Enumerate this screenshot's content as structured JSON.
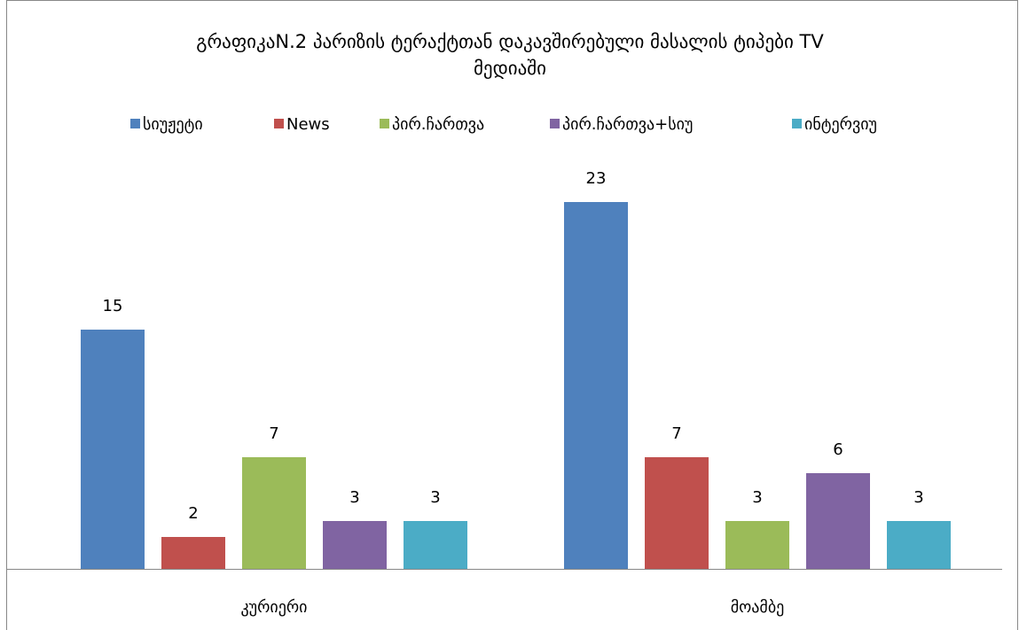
{
  "chart_data": {
    "type": "bar",
    "title": "გრაფიკაN.2 პარიზის ტერაქტთან დაკავშირებული მასალის ტიპები TV მედიაში",
    "categories": [
      "კურიერი",
      "მოამბე"
    ],
    "series": [
      {
        "name": "სიუჟეტი",
        "color": "#4f81bd",
        "values": [
          15,
          23
        ]
      },
      {
        "name": "News",
        "color": "#c0504d",
        "values": [
          2,
          7
        ]
      },
      {
        "name": "პირ.ჩართვა",
        "color": "#9bbb59",
        "values": [
          7,
          3
        ]
      },
      {
        "name": "პირ.ჩართვა+სიუ",
        "color": "#8064a2",
        "values": [
          3,
          6
        ]
      },
      {
        "name": "ინტერვიუ",
        "color": "#4bacc6",
        "values": [
          3,
          3
        ]
      }
    ],
    "legend": "top"
  }
}
